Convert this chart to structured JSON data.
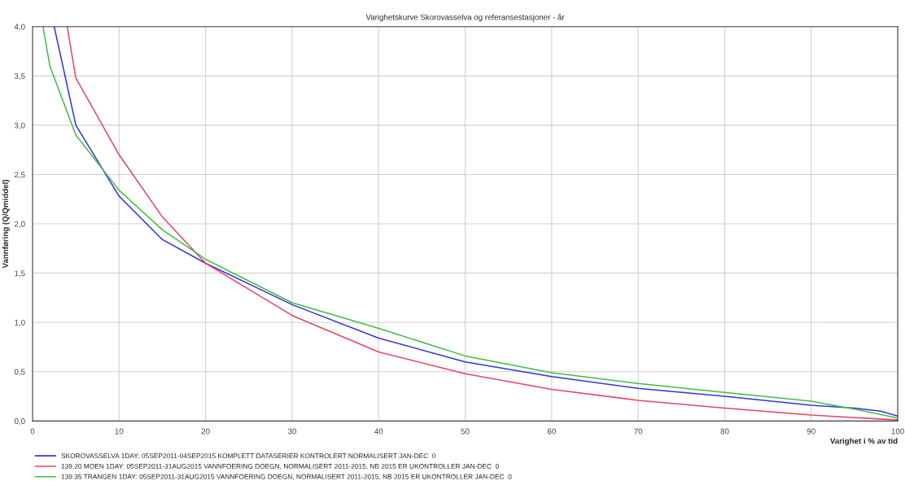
{
  "chart_data": {
    "type": "line",
    "title": "Varighetskurve Skorovasselva og referansestasjoner - år",
    "xlabel": "Varighet i % av tid",
    "ylabel": "Vannføring (Q/Qmiddel)",
    "xlim": [
      0,
      100
    ],
    "ylim": [
      0,
      4.0
    ],
    "xticks": [
      0,
      10,
      20,
      30,
      40,
      50,
      60,
      70,
      80,
      90,
      100
    ],
    "yticks": [
      {
        "value": 0,
        "label": "0,0"
      },
      {
        "value": 0.5,
        "label": "0,5"
      },
      {
        "value": 1.0,
        "label": "1,0"
      },
      {
        "value": 1.5,
        "label": "1,5"
      },
      {
        "value": 2.0,
        "label": "2,0"
      },
      {
        "value": 2.5,
        "label": "2,5"
      },
      {
        "value": 3.0,
        "label": "3,0"
      },
      {
        "value": 3.5,
        "label": "3,5"
      },
      {
        "value": 4.0,
        "label": "4,0"
      }
    ],
    "grid": true,
    "legend": "bottom left",
    "marker": "none",
    "line_style": "solid",
    "series": [
      {
        "name": "SKOROVASSELVA 1DAY: 05SEP2011-04SEP2015 KOMPLETT DATASERIER KONTROLERT NORMALISERT JAN-DEC  0",
        "color": "#3333dd",
        "x": [
          2.5,
          5,
          10,
          15,
          20,
          30,
          40,
          50,
          60,
          70,
          80,
          90,
          95,
          98,
          100
        ],
        "values": [
          4.0,
          3.0,
          2.28,
          1.84,
          1.6,
          1.18,
          0.84,
          0.6,
          0.45,
          0.33,
          0.25,
          0.16,
          0.13,
          0.1,
          0.05
        ]
      },
      {
        "name": "139.20 MOEN 1DAY: 05SEP2011-31AUG2015 VANNFOERING DOEGN, NORMALISERT 2011-2015, NB 2015 ER UKONTROLLER JAN-DEC  0",
        "color": "#e8436a",
        "x": [
          4,
          5,
          10,
          15,
          20,
          30,
          40,
          50,
          60,
          70,
          80,
          90,
          100
        ],
        "values": [
          4.0,
          3.48,
          2.7,
          2.07,
          1.6,
          1.07,
          0.7,
          0.48,
          0.32,
          0.21,
          0.13,
          0.06,
          0.01
        ]
      },
      {
        "name": "139.35 TRANGEN 1DAY: 05SEP2011-31AUG2015 VANNFOERING DOEGN, NORMALISERT 2011-2015, NB 2015 ER UKONTROLLER JAN-DEC  0",
        "color": "#44bb44",
        "x": [
          1.2,
          2,
          5,
          10,
          15,
          20,
          30,
          40,
          50,
          60,
          70,
          80,
          90,
          95,
          100
        ],
        "values": [
          4.0,
          3.6,
          2.9,
          2.34,
          1.94,
          1.64,
          1.2,
          0.94,
          0.66,
          0.49,
          0.38,
          0.29,
          0.2,
          0.12,
          0.03
        ]
      }
    ]
  }
}
